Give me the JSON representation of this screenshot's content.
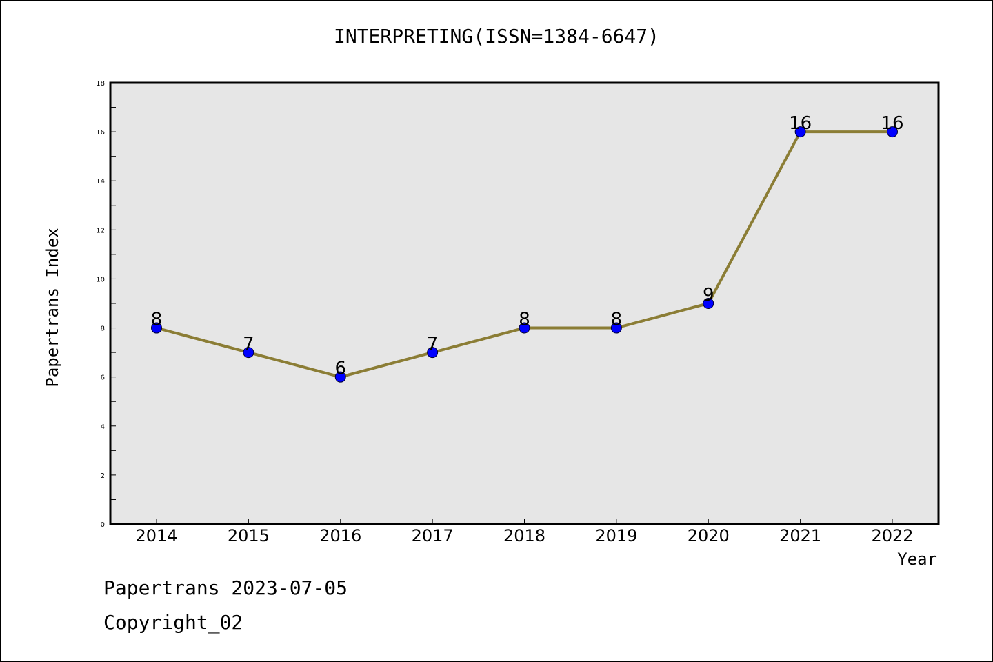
{
  "chart_data": {
    "type": "line",
    "title": "INTERPRETING(ISSN=1384-6647)",
    "xlabel": "Year",
    "ylabel": "Papertrans Index",
    "categories": [
      "2014",
      "2015",
      "2016",
      "2017",
      "2018",
      "2019",
      "2020",
      "2021",
      "2022"
    ],
    "series": [
      {
        "values": [
          8,
          7,
          6,
          7,
          8,
          8,
          9,
          16,
          16
        ]
      }
    ],
    "ylim": [
      0,
      18
    ],
    "yticks": [
      0,
      2,
      4,
      6,
      8,
      10,
      12,
      14,
      16,
      18
    ],
    "grid": false,
    "line_color": "#8b7d35",
    "marker_color": "#0000ff",
    "plot_background": "#e6e6e6"
  },
  "footer": {
    "line1": "Papertrans 2023-07-05",
    "line2": "Copyright_02"
  }
}
